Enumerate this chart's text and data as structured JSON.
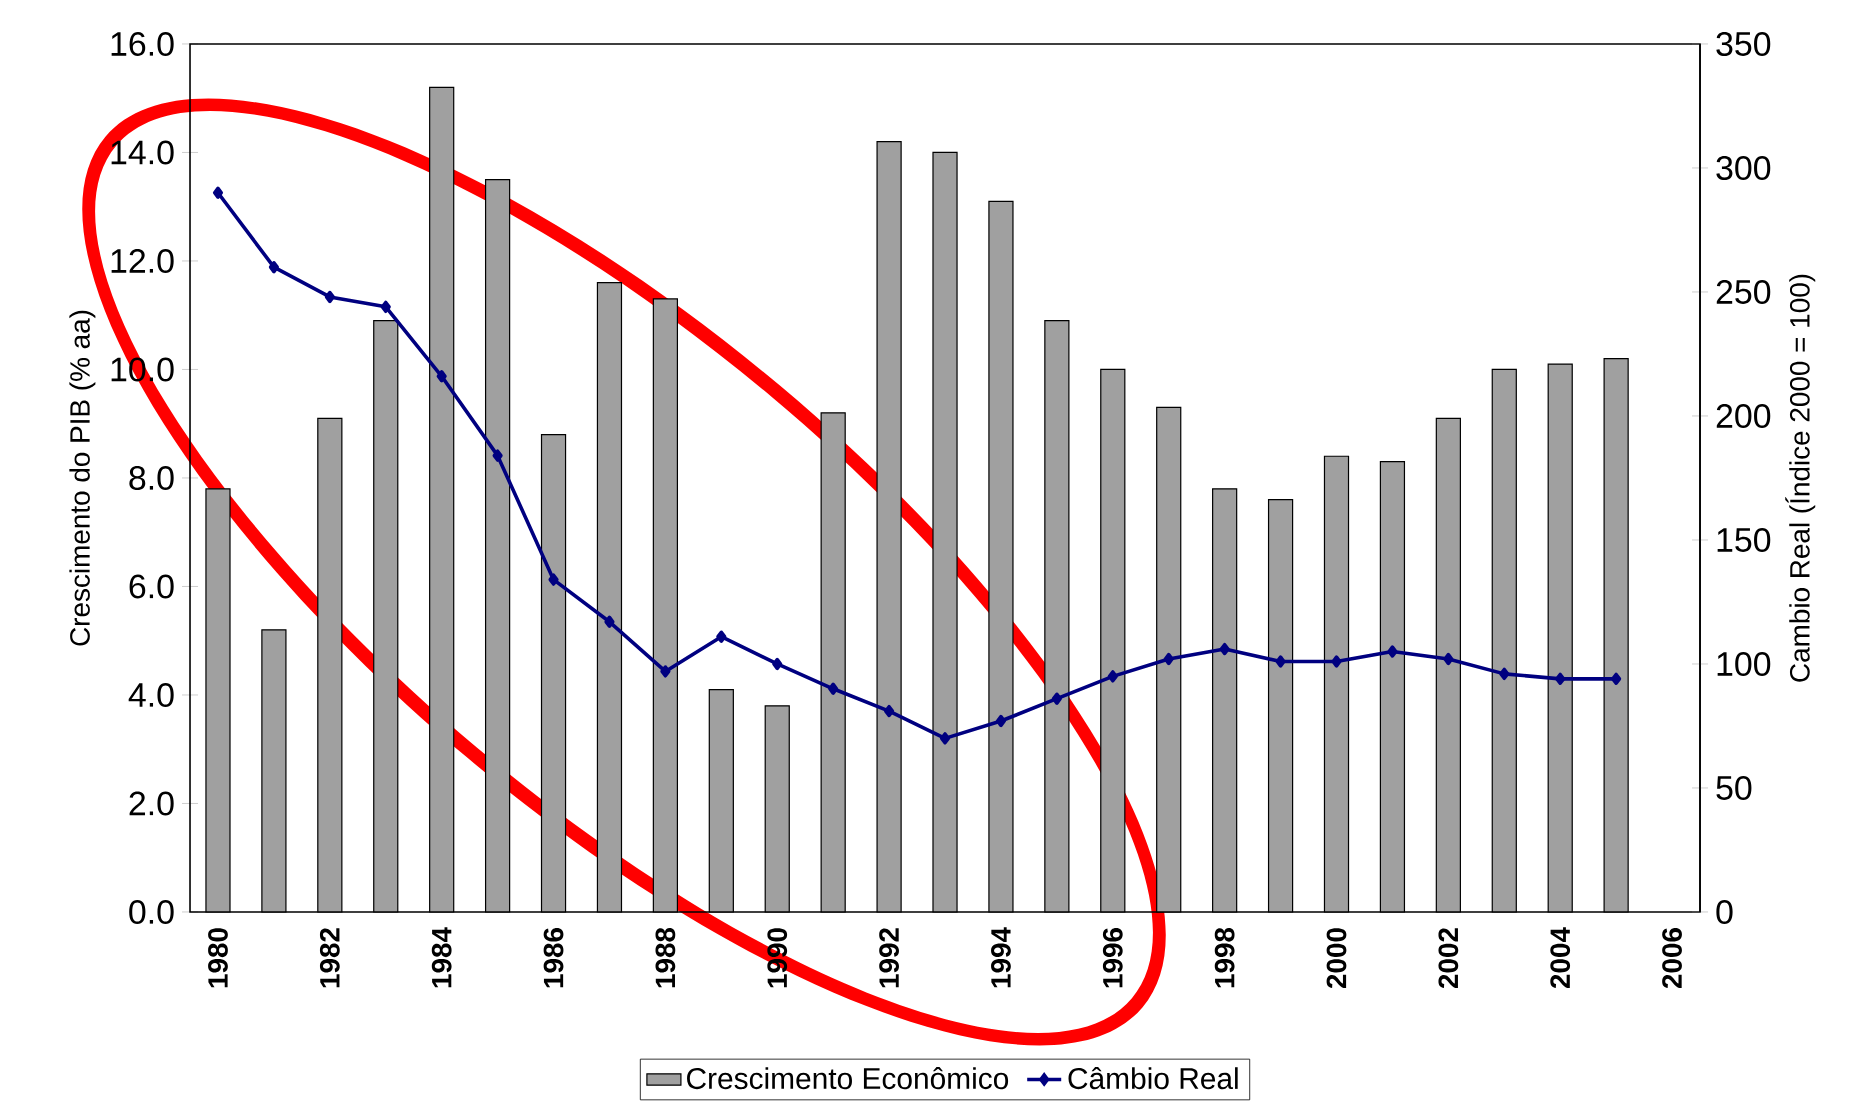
{
  "chart_data": {
    "type": "bar",
    "categories": [
      "1980",
      null,
      "1982",
      null,
      "1984",
      null,
      "1986",
      null,
      "1988",
      null,
      "1990",
      null,
      "1992",
      null,
      "1994",
      null,
      "1996",
      null,
      "1998",
      null,
      "2000",
      null,
      "2002",
      null,
      "2004",
      null,
      "2006"
    ],
    "series": [
      {
        "name": "Crescimento Econômico",
        "color": "#a0a0a0",
        "values": [
          7.8,
          5.2,
          9.1,
          10.9,
          15.2,
          13.5,
          8.8,
          11.6,
          11.3,
          4.1,
          3.8,
          9.2,
          14.2,
          14.0,
          13.1,
          10.9,
          10.0,
          9.3,
          7.8,
          7.6,
          8.4,
          8.3,
          9.1,
          10.0,
          10.1,
          10.2,
          null
        ]
      },
      {
        "name": "Câmbio Real",
        "type": "line",
        "axis": "y2",
        "color": "#000080",
        "marker": "diamond",
        "values": [
          290,
          260,
          248,
          244,
          216,
          184,
          134,
          117,
          97,
          111,
          100,
          90,
          81,
          70,
          77,
          86,
          95,
          102,
          106,
          101,
          101,
          105,
          102,
          96,
          94,
          94,
          null
        ]
      }
    ],
    "ylabel": "Crescimento do PIB (% aa)",
    "y2label": "Cambio Real (Índice 2000 = 100)",
    "ylim": [
      0,
      16
    ],
    "yticks": [
      {
        "value": 0,
        "label": "0.0"
      },
      {
        "value": 2,
        "label": "2.0"
      },
      {
        "value": 4,
        "label": "4.0"
      },
      {
        "value": 6,
        "label": "6.0"
      },
      {
        "value": 8,
        "label": "8.0"
      },
      {
        "value": 10,
        "label": "10.0"
      },
      {
        "value": 12,
        "label": "12.0"
      },
      {
        "value": 14,
        "label": "14.0"
      },
      {
        "value": 16,
        "label": "16.0"
      }
    ],
    "y2lim": [
      0,
      350
    ],
    "y2ticks": [
      0,
      50,
      100,
      150,
      200,
      250,
      300,
      350
    ],
    "legend": "bottom"
  }
}
